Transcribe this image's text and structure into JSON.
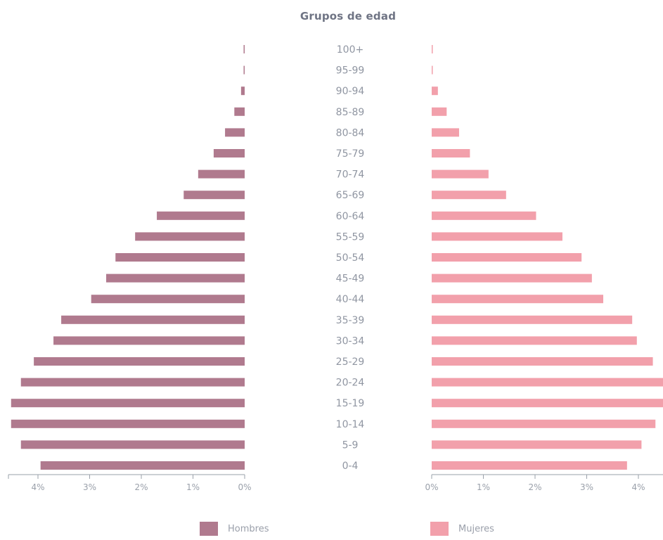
{
  "chart_data": {
    "type": "bar",
    "title": "Grupos de edad",
    "categories": [
      "100+",
      "95-99",
      "90-94",
      "85-89",
      "80-84",
      "75-79",
      "70-74",
      "65-69",
      "60-64",
      "55-59",
      "50-54",
      "45-49",
      "40-44",
      "35-39",
      "30-34",
      "25-29",
      "20-24",
      "15-19",
      "10-14",
      "5-9",
      "0-4"
    ],
    "series": [
      {
        "name": "Hombres",
        "color": "#b07a8e",
        "values": [
          0.01,
          0.02,
          0.07,
          0.2,
          0.38,
          0.6,
          0.9,
          1.18,
          1.7,
          2.12,
          2.5,
          2.68,
          2.97,
          3.55,
          3.7,
          4.08,
          4.33,
          4.52,
          4.52,
          4.33,
          3.95
        ]
      },
      {
        "name": "Mujeres",
        "color": "#f2a0ab",
        "values": [
          0.01,
          0.02,
          0.12,
          0.29,
          0.53,
          0.74,
          1.1,
          1.44,
          2.02,
          2.53,
          2.9,
          3.1,
          3.32,
          3.88,
          3.97,
          4.28,
          4.48,
          4.48,
          4.33,
          4.06,
          3.78
        ]
      }
    ],
    "left_axis_ticks": [
      "4%",
      "3%",
      "2%",
      "1%",
      "0%"
    ],
    "right_axis_ticks": [
      "0%",
      "1%",
      "2%",
      "3%",
      "4%"
    ],
    "xlim": [
      0,
      4.5
    ],
    "legend": [
      "Hombres",
      "Mujeres"
    ],
    "legend_placement": "bottom"
  }
}
